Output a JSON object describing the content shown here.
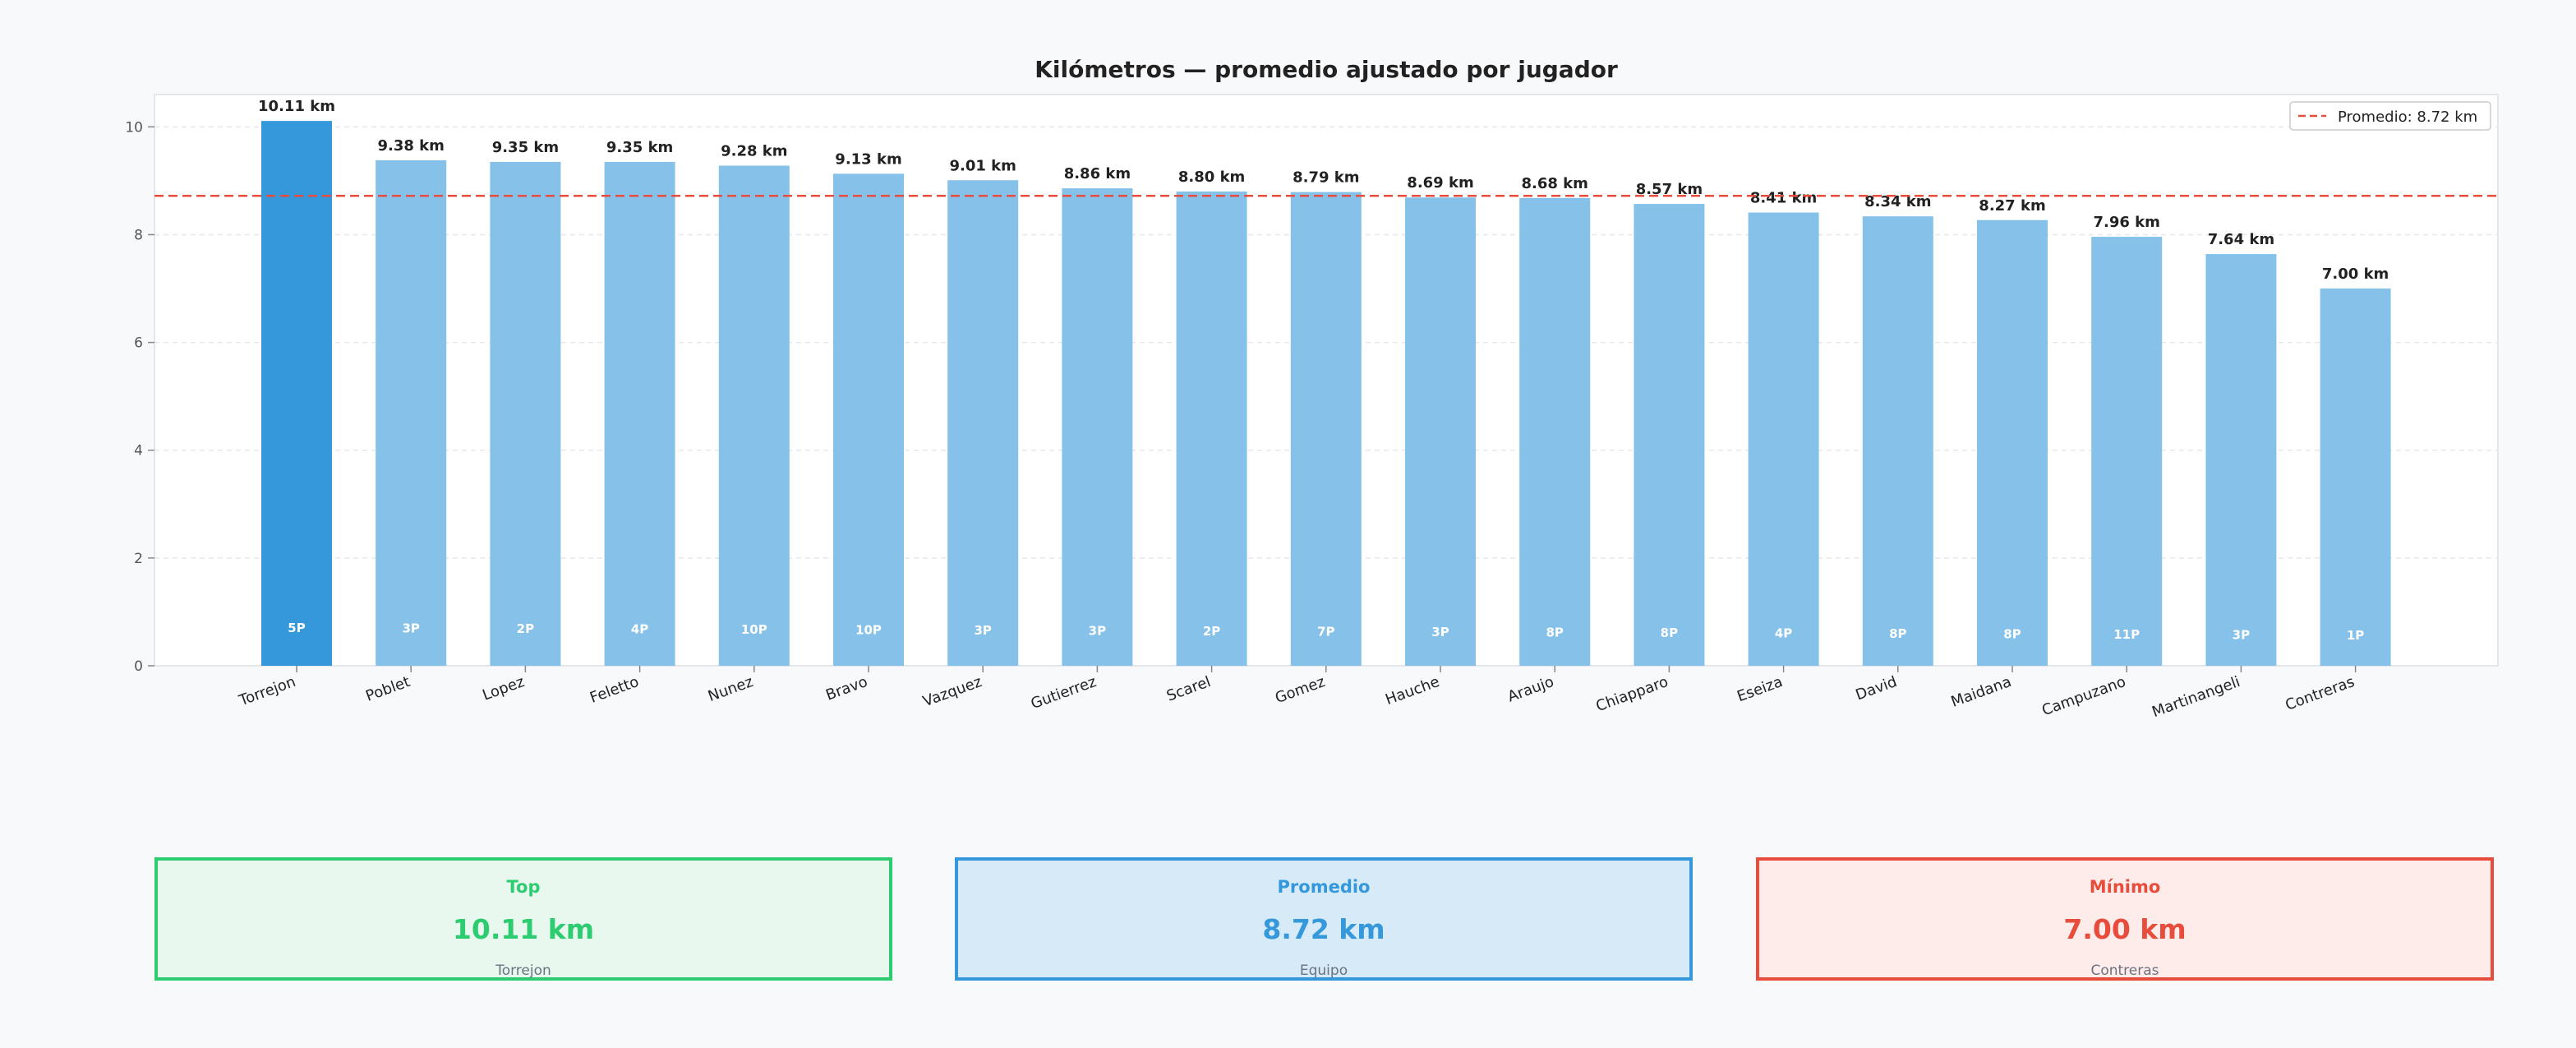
{
  "chart_data": {
    "type": "bar",
    "title": "Kilómetros — promedio ajustado por jugador",
    "categories": [
      "Torrejon",
      "Poblet",
      "Lopez",
      "Feletto",
      "Nunez",
      "Bravo",
      "Vazquez",
      "Gutierrez",
      "Scarel",
      "Gomez",
      "Hauche",
      "Araujo",
      "Chiapparo",
      "Eseiza",
      "David",
      "Maidana",
      "Campuzano",
      "Martinangeli",
      "Contreras"
    ],
    "values": [
      10.11,
      9.38,
      9.35,
      9.35,
      9.28,
      9.13,
      9.01,
      8.86,
      8.8,
      8.79,
      8.69,
      8.68,
      8.57,
      8.41,
      8.34,
      8.27,
      7.96,
      7.64,
      7.0
    ],
    "value_labels": [
      "10.11 km",
      "9.38 km",
      "9.35 km",
      "9.35 km",
      "9.28 km",
      "9.13 km",
      "9.01 km",
      "8.86 km",
      "8.80 km",
      "8.79 km",
      "8.69 km",
      "8.68 km",
      "8.57 km",
      "8.41 km",
      "8.34 km",
      "8.27 km",
      "7.96 km",
      "7.64 km",
      "7.00 km"
    ],
    "matches_labels": [
      "5P",
      "3P",
      "2P",
      "4P",
      "10P",
      "10P",
      "3P",
      "3P",
      "2P",
      "7P",
      "3P",
      "8P",
      "8P",
      "4P",
      "8P",
      "8P",
      "11P",
      "3P",
      "1P"
    ],
    "ylim": [
      0,
      10.6
    ],
    "yticks": [
      0,
      2,
      4,
      6,
      8,
      10
    ],
    "average": 8.72,
    "legend_label": "Promedio: 8.72 km",
    "legend_position": "top-right",
    "grid": true,
    "highlight_index": 0,
    "colors": {
      "highlight": "#3498db",
      "bar": "#85c1e9",
      "average_line": "#e74c3c"
    }
  },
  "cards": {
    "top": {
      "label": "Top",
      "value": "10.11 km",
      "sub": "Torrejon"
    },
    "average": {
      "label": "Promedio",
      "value": "8.72 km",
      "sub": "Equipo"
    },
    "minimum": {
      "label": "Mínimo",
      "value": "7.00 km",
      "sub": "Contreras"
    }
  }
}
